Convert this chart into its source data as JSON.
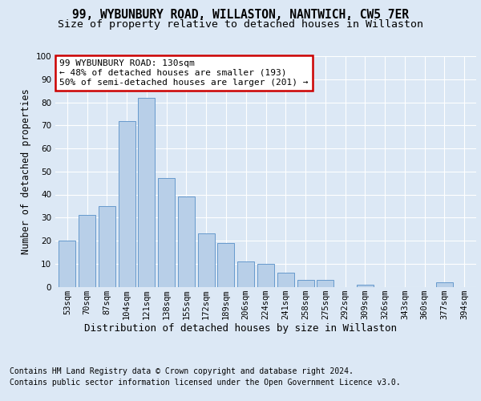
{
  "title": "99, WYBUNBURY ROAD, WILLASTON, NANTWICH, CW5 7ER",
  "subtitle": "Size of property relative to detached houses in Willaston",
  "xlabel": "Distribution of detached houses by size in Willaston",
  "ylabel": "Number of detached properties",
  "bar_labels": [
    "53sqm",
    "70sqm",
    "87sqm",
    "104sqm",
    "121sqm",
    "138sqm",
    "155sqm",
    "172sqm",
    "189sqm",
    "206sqm",
    "224sqm",
    "241sqm",
    "258sqm",
    "275sqm",
    "292sqm",
    "309sqm",
    "326sqm",
    "343sqm",
    "360sqm",
    "377sqm",
    "394sqm"
  ],
  "bar_values": [
    20,
    31,
    35,
    72,
    82,
    47,
    39,
    23,
    19,
    11,
    10,
    6,
    3,
    3,
    0,
    1,
    0,
    0,
    0,
    2,
    0
  ],
  "bar_color": "#b8cfe8",
  "bar_edge_color": "#6699cc",
  "annotation_text": "99 WYBUNBURY ROAD: 130sqm\n← 48% of detached houses are smaller (193)\n50% of semi-detached houses are larger (201) →",
  "annotation_box_color": "#ffffff",
  "annotation_box_edge_color": "#cc0000",
  "footer_line1": "Contains HM Land Registry data © Crown copyright and database right 2024.",
  "footer_line2": "Contains public sector information licensed under the Open Government Licence v3.0.",
  "background_color": "#dce8f5",
  "plot_background_color": "#dce8f5",
  "ylim": [
    0,
    100
  ],
  "title_fontsize": 10.5,
  "subtitle_fontsize": 9.5,
  "ylabel_fontsize": 8.5,
  "xlabel_fontsize": 9,
  "tick_fontsize": 7.5,
  "annotation_fontsize": 8,
  "footer_fontsize": 7
}
